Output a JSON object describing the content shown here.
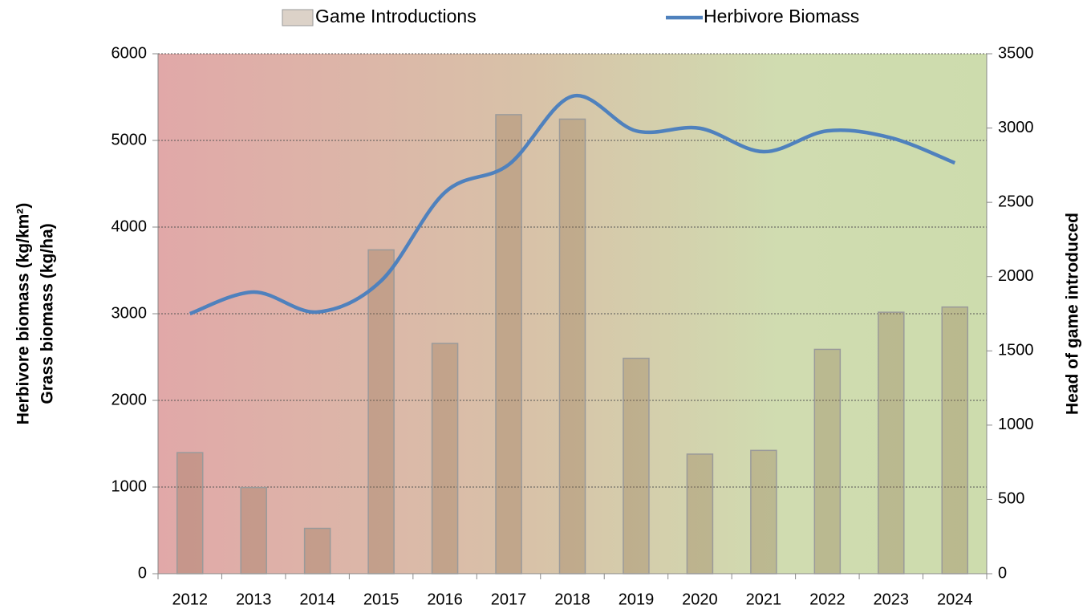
{
  "chart_data": {
    "type": "bar_line",
    "categories": [
      "2012",
      "2013",
      "2014",
      "2015",
      "2016",
      "2017",
      "2018",
      "2019",
      "2020",
      "2021",
      "2022",
      "2023",
      "2024"
    ],
    "series": [
      {
        "name": "Game Introductions",
        "type": "bar",
        "axis": "y2",
        "color": "#8a6a4a",
        "values": [
          815,
          580,
          305,
          2180,
          1550,
          3090,
          3060,
          1450,
          805,
          830,
          1510,
          1760,
          1795
        ]
      },
      {
        "name": "Herbivore Biomass",
        "type": "line",
        "axis": "y",
        "color": "#4f81bd",
        "values": [
          3000,
          3250,
          3020,
          3380,
          4400,
          4720,
          5510,
          5110,
          5140,
          4870,
          5110,
          5030,
          4740
        ]
      }
    ],
    "ylabel": [
      "Herbivore biomass (kg/km²)",
      "Grass biomass (kg/ha)"
    ],
    "y2label": "Head of game introduced",
    "ylim": [
      0,
      6000
    ],
    "yticks": [
      0,
      1000,
      2000,
      3000,
      4000,
      5000,
      6000
    ],
    "y2lim": [
      0,
      3500
    ],
    "y2ticks": [
      0,
      500,
      1000,
      1500,
      2000,
      2500,
      3000,
      3500
    ],
    "grid": true,
    "legend": "top"
  }
}
